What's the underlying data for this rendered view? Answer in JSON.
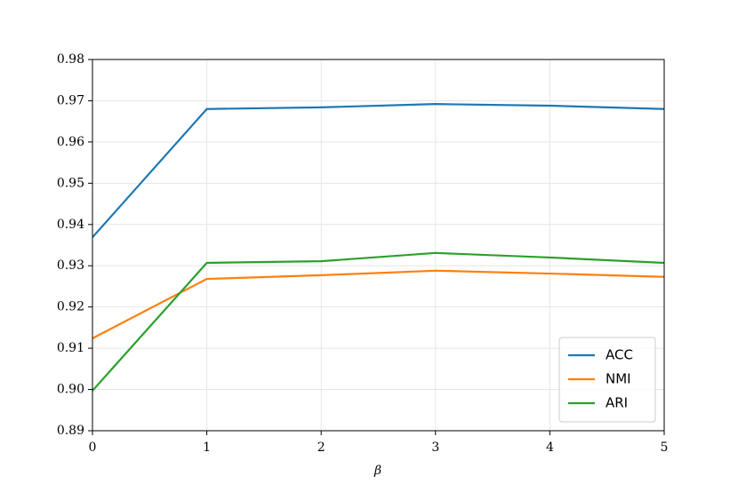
{
  "chart_data": {
    "type": "line",
    "x": [
      0,
      1,
      2,
      3,
      4,
      5
    ],
    "series": [
      {
        "name": "ACC",
        "color": "#1f77b4",
        "values": [
          0.9369,
          0.968,
          0.9684,
          0.9692,
          0.9688,
          0.968
        ]
      },
      {
        "name": "NMI",
        "color": "#ff7f0e",
        "values": [
          0.9124,
          0.9268,
          0.9277,
          0.9288,
          0.9281,
          0.9273
        ]
      },
      {
        "name": "ARI",
        "color": "#2ca02c",
        "values": [
          0.8997,
          0.9307,
          0.9311,
          0.9331,
          0.932,
          0.9307
        ]
      }
    ],
    "xlabel": "β",
    "xlim": [
      0,
      5
    ],
    "xticks": [
      0,
      1,
      2,
      3,
      4,
      5
    ],
    "ylim": [
      0.89,
      0.98
    ],
    "yticks": [
      0.89,
      {
        "value": 0.9,
        "label": "0.90"
      },
      0.91,
      0.92,
      0.93,
      0.94,
      0.95,
      0.96,
      0.97,
      0.98
    ],
    "grid": true,
    "legend": "lower right"
  }
}
